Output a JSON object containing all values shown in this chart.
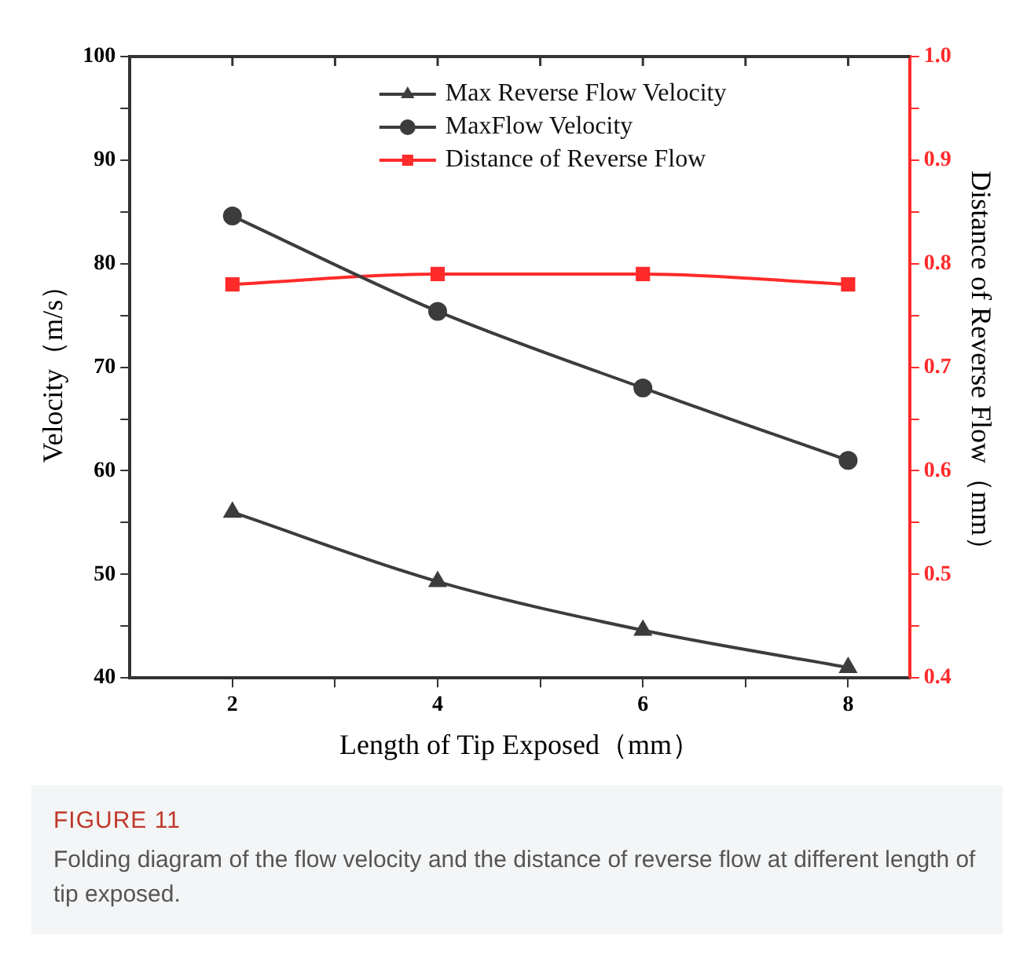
{
  "chart_data": {
    "type": "line",
    "xlabel": "Length of Tip Exposed（mm）",
    "ylabel": "Velocity（m/s）",
    "y2label": "Distance of Reverse Flow（mm）",
    "x": [
      2,
      4,
      6,
      8
    ],
    "xlim": [
      1,
      8.6
    ],
    "xticks": [
      2,
      {
        "value": 3,
        "label": null
      },
      4,
      {
        "value": 5,
        "label": null
      },
      6,
      {
        "value": 7,
        "label": null
      },
      8
    ],
    "ylim": [
      40,
      100
    ],
    "yticks": [
      40,
      {
        "value": 45,
        "label": null
      },
      50,
      {
        "value": 55,
        "label": null
      },
      60,
      {
        "value": 65,
        "label": null
      },
      70,
      {
        "value": 75,
        "label": null
      },
      80,
      {
        "value": 85,
        "label": null
      },
      90,
      {
        "value": 95,
        "label": null
      },
      100
    ],
    "y2lim": [
      0.4,
      1.0
    ],
    "y2ticks": [
      {
        "value": 0.4,
        "label": "0.4"
      },
      {
        "value": 0.45,
        "label": null
      },
      {
        "value": 0.5,
        "label": "0.5"
      },
      {
        "value": 0.55,
        "label": null
      },
      {
        "value": 0.6,
        "label": "0.6"
      },
      {
        "value": 0.65,
        "label": null
      },
      {
        "value": 0.7,
        "label": "0.7"
      },
      {
        "value": 0.75,
        "label": null
      },
      {
        "value": 0.8,
        "label": "0.8"
      },
      {
        "value": 0.85,
        "label": null
      },
      {
        "value": 0.9,
        "label": "0.9"
      },
      {
        "value": 0.95,
        "label": null
      },
      {
        "value": 1.0,
        "label": "1.0"
      }
    ],
    "grid": false,
    "legend": "top",
    "line_style": "solid",
    "series": [
      {
        "name": "Max Reverse Flow Velocity",
        "color": "#3c3c3c",
        "marker": "triangle",
        "values": [
          56,
          49.3,
          44.6,
          41
        ]
      },
      {
        "name": "MaxFlow Velocity",
        "color": "#3c3c3c",
        "marker": "circle",
        "values": [
          84.6,
          75.4,
          68,
          61
        ]
      },
      {
        "name": "Distance of Reverse Flow",
        "color": "#ff2a2a",
        "marker": "square",
        "axis": "y2",
        "values": [
          0.78,
          0.79,
          0.79,
          0.78
        ]
      }
    ],
    "annotations": [
      "FIGURE 11",
      "Folding diagram of the flow velocity and the distance of reverse flow at different length of tip exposed."
    ]
  }
}
